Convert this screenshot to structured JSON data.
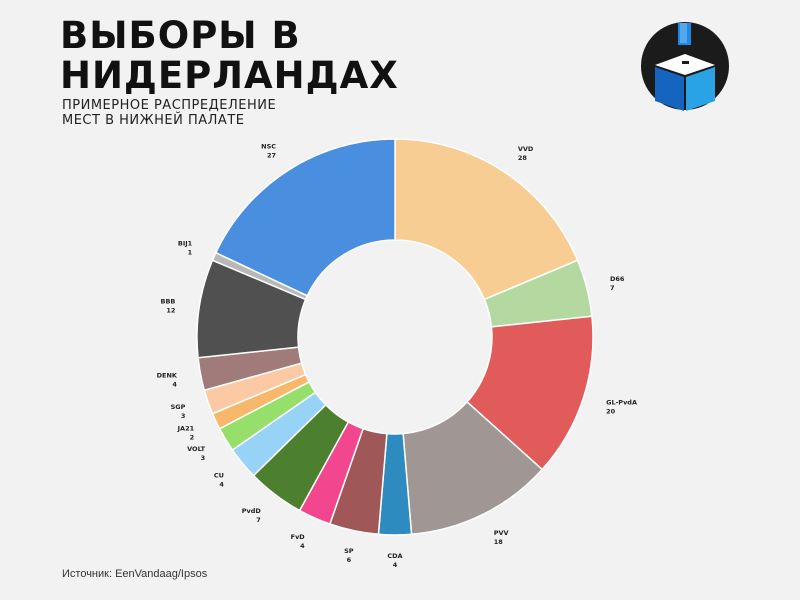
{
  "header": {
    "title_line1": "ВЫБОРЫ В",
    "title_line2": "НИДЕРЛАНДАХ",
    "subtitle_line1": "ПРИМЕРНОЕ РАСПРЕДЕЛЕНИЕ",
    "subtitle_line2": "МЕСТ В НИЖНЕЙ ПАЛАТЕ"
  },
  "logo": {
    "icon": "ballot-box-icon",
    "colors": [
      "#1b1b1b",
      "#1e88e5",
      "#ffffff"
    ]
  },
  "footer": {
    "source": "Источник: EenVandaag/Ipsos"
  },
  "chart_data": {
    "type": "pie",
    "donut": true,
    "start": "top",
    "direction": "clockwise",
    "slices": [
      {
        "label": "VVD",
        "value": 28,
        "color": "#f7cd94"
      },
      {
        "label": "D66",
        "value": 7,
        "color": "#b3d9a0"
      },
      {
        "label": "GL-PvdA",
        "value": 20,
        "color": "#e15b5b"
      },
      {
        "label": "PVV",
        "value": 18,
        "color": "#a09693"
      },
      {
        "label": "CDA",
        "value": 4,
        "color": "#2e8bc0"
      },
      {
        "label": "SP",
        "value": 6,
        "color": "#a05757"
      },
      {
        "label": "FvD",
        "value": 4,
        "color": "#f2478e"
      },
      {
        "label": "PvdD",
        "value": 7,
        "color": "#4c7f2e"
      },
      {
        "label": "CU",
        "value": 4,
        "color": "#97d3f7"
      },
      {
        "label": "VOLT",
        "value": 3,
        "color": "#96df6b"
      },
      {
        "label": "JA21",
        "value": 2,
        "color": "#f7b86b"
      },
      {
        "label": "SGP",
        "value": 3,
        "color": "#fbcaa5"
      },
      {
        "label": "DENK",
        "value": 4,
        "color": "#a17a7a"
      },
      {
        "label": "BBB",
        "value": 12,
        "color": "#505050"
      },
      {
        "label": "BIJ1",
        "value": 1,
        "color": "#b8b8b8"
      },
      {
        "label": "NSC",
        "value": 27,
        "color": "#4a8ee0"
      }
    ]
  }
}
